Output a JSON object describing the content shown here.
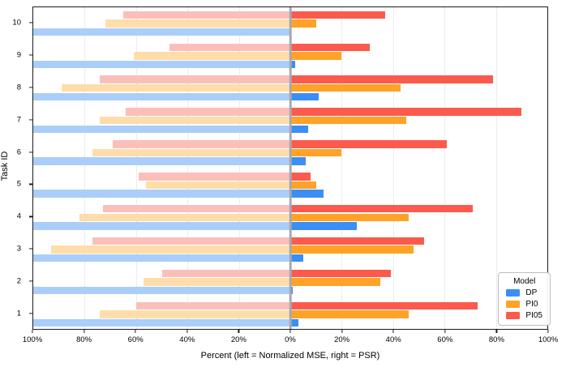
{
  "chart_data": {
    "type": "bar",
    "variant": "diverging-horizontal-grouped",
    "title": "",
    "xlabel": "Percent (left = Normalized MSE, right = PSR)",
    "ylabel": "Task ID",
    "left_metric": "Normalized MSE",
    "right_metric": "PSR",
    "x_tick_labels": [
      "100%",
      "80%",
      "60%",
      "40%",
      "20%",
      "0%",
      "20%",
      "40%",
      "60%",
      "80%",
      "100%"
    ],
    "x_axis_range_each_side_pct": [
      0,
      100
    ],
    "grid": "vertical-dotted",
    "series_order_top_to_bottom": [
      "PI05",
      "PI0",
      "DP"
    ],
    "tasks_top_to_bottom": [
      {
        "id": "10",
        "left_pct": {
          "DP": 100,
          "PI0": 72,
          "PI05": 65
        },
        "right_pct": {
          "DP": 0,
          "PI0": 10,
          "PI05": 37
        }
      },
      {
        "id": "9",
        "left_pct": {
          "DP": 100,
          "PI0": 61,
          "PI05": 47
        },
        "right_pct": {
          "DP": 2,
          "PI0": 20,
          "PI05": 31
        }
      },
      {
        "id": "8",
        "left_pct": {
          "DP": 100,
          "PI0": 89,
          "PI05": 74
        },
        "right_pct": {
          "DP": 11,
          "PI0": 43,
          "PI05": 79
        }
      },
      {
        "id": "7",
        "left_pct": {
          "DP": 100,
          "PI0": 74,
          "PI05": 64
        },
        "right_pct": {
          "DP": 7,
          "PI0": 45,
          "PI05": 90
        }
      },
      {
        "id": "6",
        "left_pct": {
          "DP": 100,
          "PI0": 77,
          "PI05": 69
        },
        "right_pct": {
          "DP": 6,
          "PI0": 20,
          "PI05": 61
        }
      },
      {
        "id": "5",
        "left_pct": {
          "DP": 100,
          "PI0": 56,
          "PI05": 59
        },
        "right_pct": {
          "DP": 13,
          "PI0": 10,
          "PI05": 8
        }
      },
      {
        "id": "4",
        "left_pct": {
          "DP": 100,
          "PI0": 82,
          "PI05": 73
        },
        "right_pct": {
          "DP": 26,
          "PI0": 46,
          "PI05": 71
        }
      },
      {
        "id": "3",
        "left_pct": {
          "DP": 100,
          "PI0": 93,
          "PI05": 77
        },
        "right_pct": {
          "DP": 5,
          "PI0": 48,
          "PI05": 52
        }
      },
      {
        "id": "2",
        "left_pct": {
          "DP": 100,
          "PI0": 57,
          "PI05": 50
        },
        "right_pct": {
          "DP": 1,
          "PI0": 35,
          "PI05": 39
        }
      },
      {
        "id": "1",
        "left_pct": {
          "DP": 100,
          "PI0": 74,
          "PI05": 60
        },
        "right_pct": {
          "DP": 3,
          "PI0": 46,
          "PI05": 73
        }
      }
    ],
    "legend": {
      "title": "Model",
      "position": "lower-right",
      "entries": [
        {
          "label": "DP",
          "color": "#3A8EF6"
        },
        {
          "label": "PI0",
          "color": "#FFA227"
        },
        {
          "label": "PI05",
          "color": "#FB5A4D"
        }
      ]
    },
    "colors": {
      "DP": {
        "solid": "#3A8EF6",
        "light": "#AACEF9"
      },
      "PI0": {
        "solid": "#FFA227",
        "light": "#FEDDAB"
      },
      "PI05": {
        "solid": "#FB5A4D",
        "light": "#FBBFBA"
      },
      "zero_line": "#A6A9B0",
      "grid": "#D9D9D9",
      "spine": "#1C1C1C"
    }
  }
}
